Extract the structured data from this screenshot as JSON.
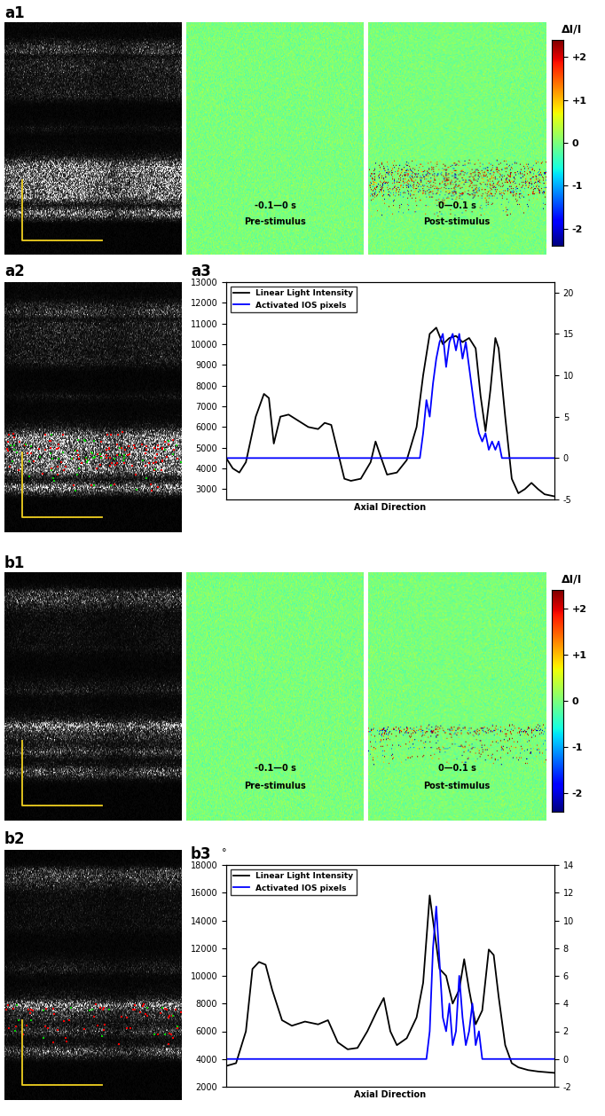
{
  "panels": {
    "a1": {
      "label": "a1",
      "pre_stimulus": {
        "time": "-0.1—0 s",
        "text": "Pre-stimulus"
      },
      "post_stimulus": {
        "time": "0—0.1 s",
        "text": "Post-stimulus"
      },
      "colorbar": {
        "label": "ΔI/I",
        "range": [
          -2.4,
          2.4
        ],
        "ticks": [
          {
            "value": 2,
            "label": "+2"
          },
          {
            "value": 1,
            "label": "+1"
          },
          0,
          -1,
          -2
        ]
      }
    },
    "a2": {
      "label": "a2"
    },
    "b1": {
      "label": "b1",
      "pre_stimulus": {
        "time": "-0.1—0 s",
        "text": "Pre-stimulus"
      },
      "post_stimulus": {
        "time": "0—0.1 s",
        "text": "Post-stimulus"
      },
      "colorbar": {
        "label": "ΔI/I",
        "range": [
          -2.4,
          2.4
        ],
        "ticks": [
          {
            "value": 2,
            "label": "+2"
          },
          {
            "value": 1,
            "label": "+1"
          },
          0,
          -1,
          -2
        ]
      }
    },
    "b2": {
      "label": "b2"
    }
  },
  "chart_data": [
    {
      "label": "a3",
      "type": "line",
      "xlabel": "Axial Direction",
      "xlim": [
        0,
        100
      ],
      "ylim": [
        2500,
        13000
      ],
      "yticks": [
        3000,
        4000,
        5000,
        6000,
        7000,
        8000,
        9000,
        10000,
        11000,
        12000,
        13000
      ],
      "y2lim": [
        -5,
        21.25
      ],
      "y2ticks": [
        -5,
        0,
        5,
        10,
        15,
        20
      ],
      "legend": "upper left",
      "tick_labels": "y",
      "series": [
        {
          "name": "Linear Light Intensity",
          "color": "#000000",
          "x": [
            0,
            2,
            4,
            6,
            9,
            11.5,
            13,
            14.5,
            16.5,
            19,
            22,
            25,
            28,
            30,
            32,
            34,
            36,
            38,
            41,
            44,
            45.5,
            47,
            49,
            52,
            55,
            58,
            60,
            62,
            64,
            66,
            68,
            70,
            72,
            74,
            76,
            77.5,
            79,
            80.5,
            82,
            83,
            85,
            87,
            89,
            91,
            93,
            95,
            97,
            100
          ],
          "values": [
            4500,
            4000,
            3800,
            4300,
            6500,
            7600,
            7400,
            5200,
            6500,
            6600,
            6300,
            6000,
            5900,
            6200,
            6100,
            4800,
            3500,
            3400,
            3500,
            4300,
            5300,
            4600,
            3700,
            3800,
            4400,
            6000,
            8500,
            10500,
            10800,
            10000,
            10300,
            10400,
            10100,
            10300,
            9800,
            7500,
            5800,
            7800,
            10300,
            9800,
            6500,
            3500,
            2800,
            3000,
            3300,
            3000,
            2750,
            2650
          ]
        },
        {
          "name": "Activated IOS pixels",
          "color": "#0000ff",
          "axis": "y2",
          "x": [
            0,
            59,
            60,
            61,
            62,
            63,
            64,
            65,
            66,
            67,
            68,
            69,
            70,
            71,
            72,
            73,
            74,
            75,
            76,
            77,
            78,
            79,
            80,
            81,
            82,
            83,
            84,
            100
          ],
          "values": [
            0,
            0,
            3,
            7,
            5,
            9,
            12,
            14,
            15,
            11,
            14,
            15,
            13,
            15,
            12,
            14,
            11,
            8,
            5,
            3,
            2,
            3,
            1,
            2,
            1,
            2,
            0,
            0
          ]
        }
      ]
    },
    {
      "label": "b3",
      "type": "line",
      "xlabel": "Axial Direction",
      "xlim": [
        0,
        100
      ],
      "annotation": "°",
      "ylim": [
        2000,
        18000
      ],
      "yticks": [
        2000,
        4000,
        6000,
        8000,
        10000,
        12000,
        14000,
        16000,
        18000
      ],
      "y2lim": [
        -2,
        14
      ],
      "y2ticks": [
        -2,
        0,
        2,
        4,
        6,
        8,
        10,
        12,
        14
      ],
      "legend": "upper left",
      "tick_labels": "y",
      "series": [
        {
          "name": "Linear Light Intensity",
          "color": "#000000",
          "x": [
            0,
            3,
            6,
            8,
            10,
            12,
            14,
            17,
            20,
            24,
            28,
            31,
            34,
            37,
            40,
            43,
            46,
            48,
            50,
            52,
            55,
            58,
            60,
            62,
            63,
            65,
            67,
            69,
            71,
            72.5,
            74,
            76,
            78,
            80,
            81.5,
            83,
            85,
            87,
            89,
            92,
            95,
            100
          ],
          "values": [
            3500,
            3700,
            6000,
            10500,
            11000,
            10800,
            9000,
            6800,
            6400,
            6700,
            6500,
            6800,
            5200,
            4700,
            4800,
            6000,
            7500,
            8400,
            6000,
            5000,
            5500,
            7000,
            9500,
            15800,
            14000,
            10500,
            10000,
            8000,
            9000,
            11200,
            9000,
            6500,
            7500,
            11900,
            11500,
            8500,
            5000,
            3700,
            3400,
            3200,
            3100,
            3000
          ]
        },
        {
          "name": "Activated IOS pixels",
          "color": "#0000ff",
          "axis": "y2",
          "x": [
            0,
            61,
            62,
            63,
            64,
            65,
            66,
            67,
            68,
            69,
            70,
            71,
            72,
            73,
            74,
            75,
            76,
            77,
            78,
            79,
            100
          ],
          "values": [
            0,
            0,
            2,
            8,
            11,
            7,
            3,
            2,
            4,
            1,
            2,
            6,
            3,
            1,
            2,
            4,
            1,
            2,
            0,
            0,
            0
          ]
        }
      ]
    }
  ]
}
